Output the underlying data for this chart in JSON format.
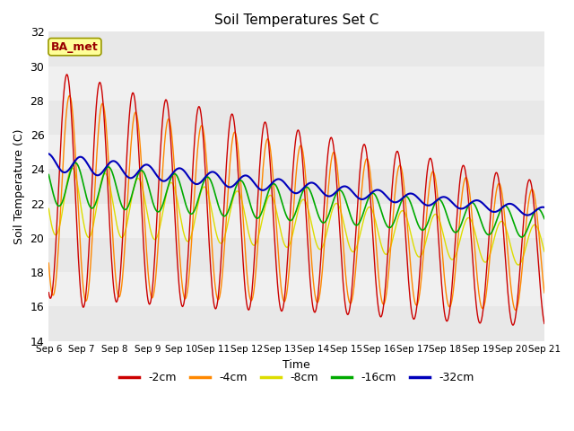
{
  "title": "Soil Temperatures Set C",
  "xlabel": "Time",
  "ylabel": "Soil Temperature (C)",
  "ylim": [
    14,
    32
  ],
  "yticks": [
    14,
    16,
    18,
    20,
    22,
    24,
    26,
    28,
    30,
    32
  ],
  "x_tick_labels": [
    "Sep 6",
    "Sep 7",
    "Sep 8",
    "Sep 9",
    "Sep 10",
    "Sep 11",
    "Sep 12",
    "Sep 13",
    "Sep 14",
    "Sep 15",
    "Sep 16",
    "Sep 17",
    "Sep 18",
    "Sep 19",
    "Sep 20",
    "Sep 21"
  ],
  "colors": {
    "-2cm": "#cc0000",
    "-4cm": "#ff8800",
    "-8cm": "#dddd00",
    "-16cm": "#00aa00",
    "-32cm": "#0000bb"
  },
  "annotation_text": "BA_met",
  "annotation_color": "#990000",
  "annotation_bg": "#ffff99",
  "annotation_border": "#999900",
  "bg_colors": [
    "#e8e8e8",
    "#f0f0f0"
  ]
}
